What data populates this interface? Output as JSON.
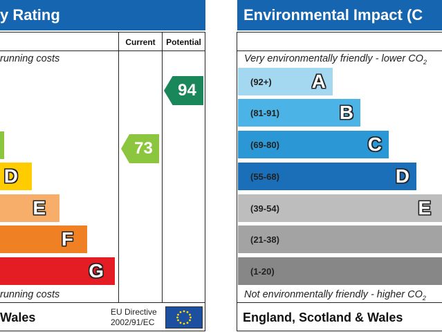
{
  "left_panel": {
    "title": "Energy Efficiency Rating",
    "visible_title": "y Rating",
    "top_note": "running costs",
    "bottom_note": "running costs",
    "footer": "Wales",
    "eu_directive_line1": "EU Directive",
    "eu_directive_line2": "2002/91/EC",
    "col_current": "Current",
    "col_potential": "Potential",
    "bands": [
      {
        "letter": "",
        "color": "#8cc63e"
      },
      {
        "letter": "D",
        "color": "#ffcc00"
      },
      {
        "letter": "E",
        "color": "#f7ae6b"
      },
      {
        "letter": "F",
        "color": "#ef8023"
      },
      {
        "letter": "G",
        "color": "#e31d23"
      }
    ],
    "current": {
      "value": "73",
      "color": "#8cc63e"
    },
    "potential": {
      "value": "94",
      "color": "#19875a"
    }
  },
  "right_panel": {
    "title": "Environmental Impact (C",
    "top_note": "Very environmentally friendly - lower CO",
    "top_note_sub": "2",
    "bottom_note": "Not environmentally friendly - higher CO",
    "bottom_note_sub": "2",
    "footer": "England, Scotland & Wales",
    "bands": [
      {
        "range": "(92+)",
        "letter": "A",
        "color": "#a4d8f1"
      },
      {
        "range": "(81-91)",
        "letter": "B",
        "color": "#4cb3e6"
      },
      {
        "range": "(69-80)",
        "letter": "C",
        "color": "#2b97d4"
      },
      {
        "range": "(55-68)",
        "letter": "D",
        "color": "#1a6fb8"
      },
      {
        "range": "(39-54)",
        "letter": "E",
        "color": "#bdbdbd"
      },
      {
        "range": "(21-38)",
        "letter": "F",
        "color": "#a3a3a3"
      },
      {
        "range": "(1-20)",
        "letter": "G",
        "color": "#878787"
      }
    ]
  }
}
